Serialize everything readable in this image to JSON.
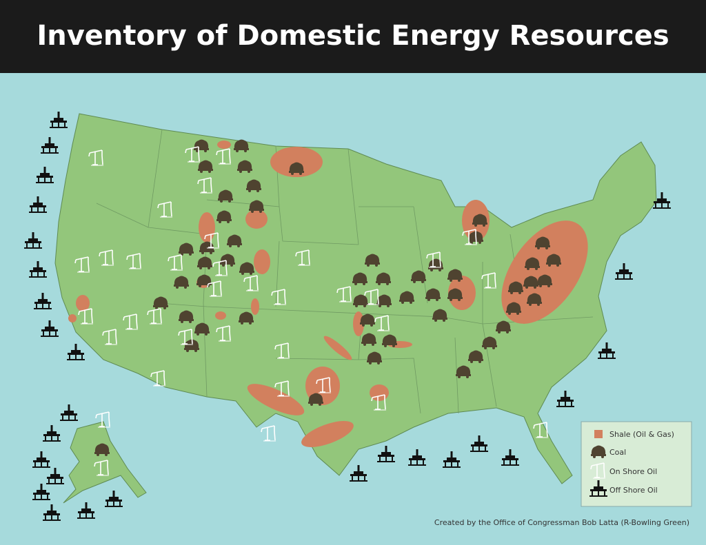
{
  "header": {
    "title": "Inventory of Domestic Energy Resources"
  },
  "legend": {
    "items": [
      "Shale (Oil & Gas)",
      "Coal",
      "On Shore Oil",
      "Off Shore Oil"
    ]
  },
  "credit": "Created by the Office of Congressman Bob Latta (R-Bowling Green)"
}
